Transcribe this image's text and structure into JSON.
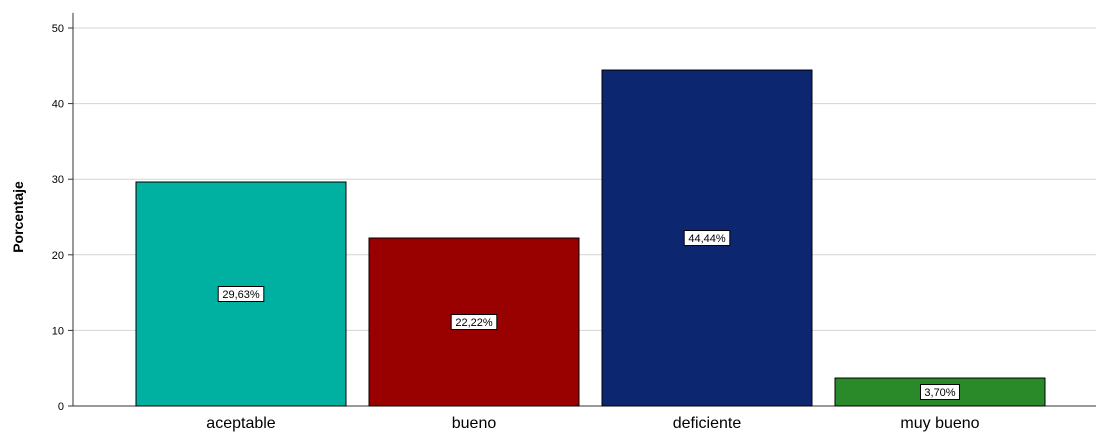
{
  "chart_data": {
    "type": "bar",
    "ylabel": "Porcentaje",
    "xlabel": "",
    "ylim": [
      0,
      52
    ],
    "yticks": [
      0,
      10,
      20,
      30,
      40,
      50
    ],
    "grid": true,
    "categories": [
      "aceptable",
      "bueno",
      "deficiente",
      "muy bueno"
    ],
    "values": [
      29.63,
      22.22,
      44.44,
      3.7
    ],
    "data_labels": [
      "29,63%",
      "22,22%",
      "44,44%",
      "3,70%"
    ],
    "colors": [
      "#00b0a0",
      "#990000",
      "#0c2670",
      "#2a8a2a"
    ]
  }
}
